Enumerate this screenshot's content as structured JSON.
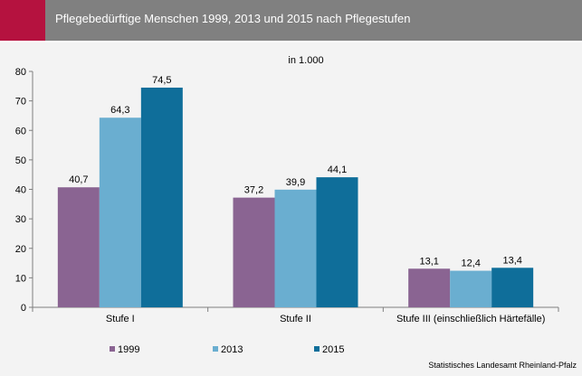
{
  "header": {
    "title": "Pflegebedürftige Menschen 1999, 2013 und 2015  nach Pflegestufen",
    "accent_color": "#b5123f",
    "bar_color": "#808080"
  },
  "chart_data": {
    "type": "bar",
    "title": "Pflegebedürftige Menschen 1999, 2013 und 2015  nach Pflegestufen",
    "unit_label": "in 1.000",
    "categories": [
      "Stufe I",
      "Stufe II",
      "Stufe III (einschließlich Härtefälle)"
    ],
    "series": [
      {
        "name": "1999",
        "values": [
          40.7,
          37.2,
          13.1
        ],
        "labels": [
          "40,7",
          "37,2",
          "13,1"
        ],
        "color": "#8a6492"
      },
      {
        "name": "2013",
        "values": [
          64.3,
          39.9,
          12.4
        ],
        "labels": [
          "64,3",
          "39,9",
          "12,4"
        ],
        "color": "#6aaed0"
      },
      {
        "name": "2015",
        "values": [
          74.5,
          44.1,
          13.4
        ],
        "labels": [
          "74,5",
          "44,1",
          "13,4"
        ],
        "color": "#0f6e9a"
      }
    ],
    "yticks": [
      0,
      10,
      20,
      30,
      40,
      50,
      60,
      70,
      80
    ],
    "ylim": [
      0,
      80
    ],
    "grid": false,
    "legend_position": "bottom-left"
  },
  "source": "Statistisches Landesamt Rheinland-Pfalz"
}
